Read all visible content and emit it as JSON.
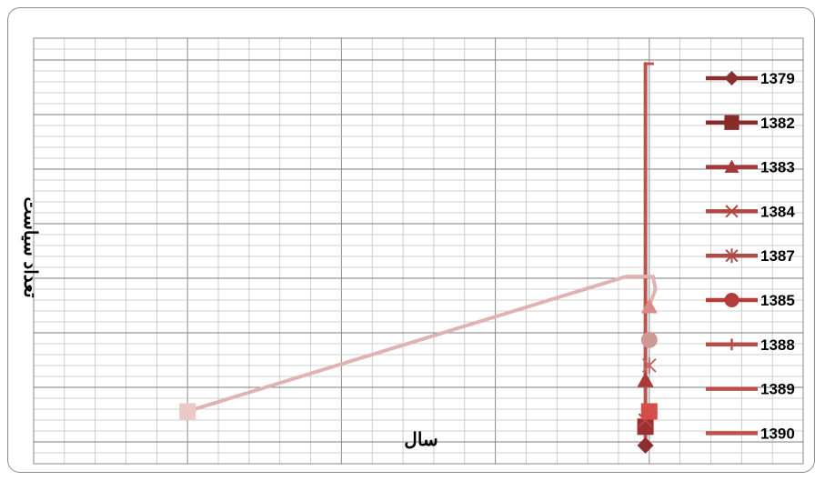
{
  "chart_data": {
    "type": "line",
    "title": "",
    "xlabel": "سال",
    "ylabel": "تعداد سیاست",
    "grid": true,
    "legend_placement": "right",
    "legend": [
      {
        "name": "1379",
        "marker": "diamond",
        "color": "#8b2e2e"
      },
      {
        "name": "1382",
        "marker": "square",
        "color": "#8b2a2a"
      },
      {
        "name": "1383",
        "marker": "triangle",
        "color": "#a33a37"
      },
      {
        "name": "1384",
        "marker": "x",
        "color": "#b44642"
      },
      {
        "name": "1387",
        "marker": "star",
        "color": "#b04a46"
      },
      {
        "name": "1385",
        "marker": "circle",
        "color": "#b23d3a"
      },
      {
        "name": "1388",
        "marker": "plus",
        "color": "#ba4c48"
      },
      {
        "name": "1389",
        "marker": "none",
        "color": "#bd4e4a"
      },
      {
        "name": "1390",
        "marker": "none",
        "color": "#c0524e"
      }
    ],
    "plotted_points": [
      {
        "marker": "diamond",
        "color": "#8b2e2e",
        "fx": 0.795,
        "fy": 0.957
      },
      {
        "marker": "square",
        "color": "#9c3030",
        "fx": 0.795,
        "fy": 0.913
      },
      {
        "marker": "triangle",
        "color": "#a83b38",
        "fx": 0.795,
        "fy": 0.804
      },
      {
        "marker": "x",
        "color": "#b44642",
        "fx": 0.795,
        "fy": 0.898
      },
      {
        "marker": "star",
        "color": "#c06a66",
        "fx": 0.8,
        "fy": 0.769
      },
      {
        "marker": "circle",
        "color": "#cf9996",
        "fx": 0.8,
        "fy": 0.709
      },
      {
        "marker": "triangle",
        "color": "#d98b87",
        "fx": 0.8,
        "fy": 0.631
      },
      {
        "marker": "square",
        "color": "#d44d48",
        "fx": 0.8,
        "fy": 0.877
      },
      {
        "marker": "square",
        "color": "#ecc8c6",
        "fx": 0.2,
        "fy": 0.877
      }
    ],
    "lines": [
      {
        "color": "#c0524e",
        "points": [
          [
            0.795,
            0.957
          ],
          [
            0.795,
            0.06
          ]
        ],
        "cap": [
          0.806,
          0.06
        ]
      },
      {
        "color": "#e0b2b0",
        "points": [
          [
            0.2,
            0.877
          ],
          [
            0.77,
            0.56
          ],
          [
            0.805,
            0.56
          ],
          [
            0.808,
            0.59
          ],
          [
            0.8,
            0.63
          ]
        ]
      }
    ]
  }
}
